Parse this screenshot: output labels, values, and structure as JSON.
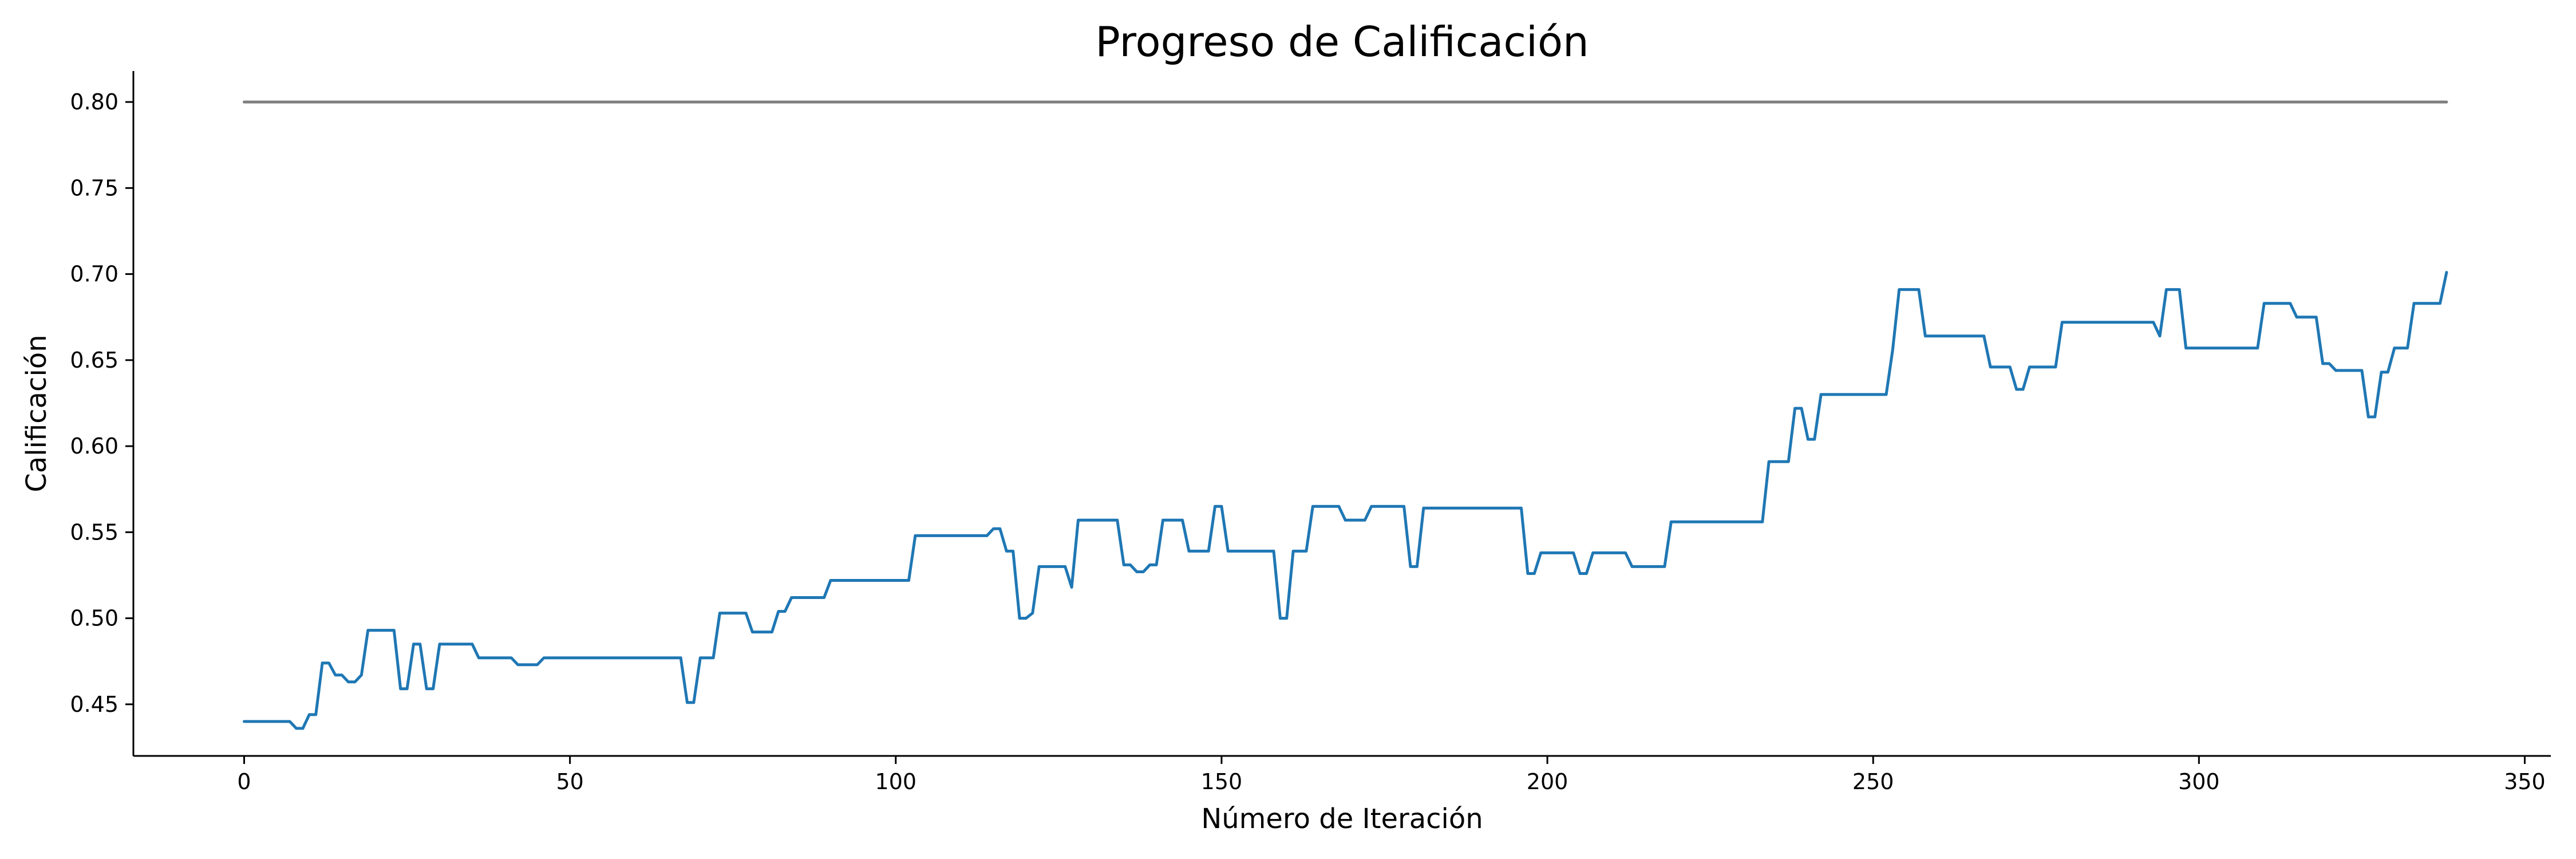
{
  "chart_data": {
    "type": "line",
    "title": "Progreso de Calificación",
    "xlabel": "Número de Iteración",
    "ylabel": "Calificación",
    "xlim": [
      -17,
      354
    ],
    "ylim": [
      0.42,
      0.818
    ],
    "xticks": [
      0,
      50,
      100,
      150,
      200,
      250,
      300,
      350
    ],
    "yticks": [
      0.45,
      0.5,
      0.55,
      0.6,
      0.65,
      0.7,
      0.75,
      0.8
    ],
    "grid": false,
    "series": [
      {
        "color": "#1f77b4",
        "points": [
          [
            0,
            0.44
          ],
          [
            7,
            0.44
          ],
          [
            8,
            0.436
          ],
          [
            9,
            0.436
          ],
          [
            10,
            0.444
          ],
          [
            11,
            0.444
          ],
          [
            12,
            0.474
          ],
          [
            13,
            0.474
          ],
          [
            14,
            0.467
          ],
          [
            15,
            0.467
          ],
          [
            16,
            0.463
          ],
          [
            17,
            0.463
          ],
          [
            18,
            0.467
          ],
          [
            19,
            0.493
          ],
          [
            22,
            0.493
          ],
          [
            23,
            0.493
          ],
          [
            24,
            0.459
          ],
          [
            25,
            0.459
          ],
          [
            26,
            0.485
          ],
          [
            27,
            0.485
          ],
          [
            28,
            0.459
          ],
          [
            29,
            0.459
          ],
          [
            30,
            0.485
          ],
          [
            35,
            0.485
          ],
          [
            36,
            0.477
          ],
          [
            41,
            0.477
          ],
          [
            42,
            0.473
          ],
          [
            45,
            0.473
          ],
          [
            46,
            0.477
          ],
          [
            66,
            0.477
          ],
          [
            67,
            0.477
          ],
          [
            68,
            0.451
          ],
          [
            69,
            0.451
          ],
          [
            70,
            0.477
          ],
          [
            72,
            0.477
          ],
          [
            73,
            0.503
          ],
          [
            77,
            0.503
          ],
          [
            78,
            0.492
          ],
          [
            81,
            0.492
          ],
          [
            82,
            0.504
          ],
          [
            83,
            0.504
          ],
          [
            84,
            0.512
          ],
          [
            89,
            0.512
          ],
          [
            90,
            0.522
          ],
          [
            102,
            0.522
          ],
          [
            103,
            0.548
          ],
          [
            114,
            0.548
          ],
          [
            115,
            0.552
          ],
          [
            116,
            0.552
          ],
          [
            117,
            0.539
          ],
          [
            118,
            0.539
          ],
          [
            119,
            0.5
          ],
          [
            120,
            0.5
          ],
          [
            121,
            0.503
          ],
          [
            122,
            0.53
          ],
          [
            126,
            0.53
          ],
          [
            127,
            0.518
          ],
          [
            128,
            0.557
          ],
          [
            134,
            0.557
          ],
          [
            135,
            0.531
          ],
          [
            136,
            0.531
          ],
          [
            137,
            0.527
          ],
          [
            138,
            0.527
          ],
          [
            139,
            0.531
          ],
          [
            140,
            0.531
          ],
          [
            141,
            0.557
          ],
          [
            144,
            0.557
          ],
          [
            145,
            0.539
          ],
          [
            148,
            0.539
          ],
          [
            149,
            0.565
          ],
          [
            150,
            0.565
          ],
          [
            151,
            0.539
          ],
          [
            158,
            0.539
          ],
          [
            159,
            0.5
          ],
          [
            160,
            0.5
          ],
          [
            161,
            0.539
          ],
          [
            163,
            0.539
          ],
          [
            164,
            0.565
          ],
          [
            168,
            0.565
          ],
          [
            169,
            0.557
          ],
          [
            172,
            0.557
          ],
          [
            173,
            0.565
          ],
          [
            178,
            0.565
          ],
          [
            179,
            0.53
          ],
          [
            180,
            0.53
          ],
          [
            181,
            0.564
          ],
          [
            196,
            0.564
          ],
          [
            197,
            0.526
          ],
          [
            198,
            0.526
          ],
          [
            199,
            0.538
          ],
          [
            204,
            0.538
          ],
          [
            205,
            0.526
          ],
          [
            206,
            0.526
          ],
          [
            207,
            0.538
          ],
          [
            212,
            0.538
          ],
          [
            213,
            0.53
          ],
          [
            218,
            0.53
          ],
          [
            219,
            0.556
          ],
          [
            233,
            0.556
          ],
          [
            234,
            0.591
          ],
          [
            237,
            0.591
          ],
          [
            238,
            0.622
          ],
          [
            239,
            0.622
          ],
          [
            240,
            0.604
          ],
          [
            241,
            0.604
          ],
          [
            242,
            0.63
          ],
          [
            252,
            0.63
          ],
          [
            253,
            0.656
          ],
          [
            254,
            0.691
          ],
          [
            257,
            0.691
          ],
          [
            258,
            0.664
          ],
          [
            267,
            0.664
          ],
          [
            268,
            0.646
          ],
          [
            271,
            0.646
          ],
          [
            272,
            0.633
          ],
          [
            273,
            0.633
          ],
          [
            274,
            0.646
          ],
          [
            278,
            0.646
          ],
          [
            279,
            0.672
          ],
          [
            293,
            0.672
          ],
          [
            294,
            0.664
          ],
          [
            295,
            0.691
          ],
          [
            297,
            0.691
          ],
          [
            298,
            0.657
          ],
          [
            309,
            0.657
          ],
          [
            310,
            0.683
          ],
          [
            314,
            0.683
          ],
          [
            315,
            0.675
          ],
          [
            318,
            0.675
          ],
          [
            319,
            0.648
          ],
          [
            320,
            0.648
          ],
          [
            321,
            0.644
          ],
          [
            325,
            0.644
          ],
          [
            326,
            0.617
          ],
          [
            327,
            0.617
          ],
          [
            328,
            0.643
          ],
          [
            329,
            0.643
          ],
          [
            330,
            0.657
          ],
          [
            332,
            0.657
          ],
          [
            333,
            0.683
          ],
          [
            337,
            0.683
          ],
          [
            338,
            0.701
          ]
        ]
      },
      {
        "color": "#7f7f7f",
        "points": [
          [
            0,
            0.8
          ],
          [
            338,
            0.8
          ]
        ]
      }
    ]
  }
}
